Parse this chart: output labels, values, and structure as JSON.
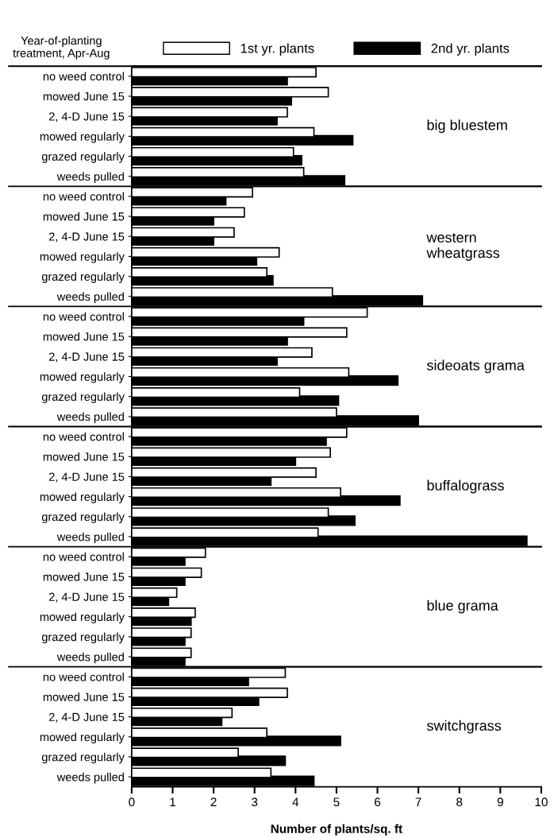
{
  "chart_data": [
    {
      "type": "bar",
      "orientation": "horizontal",
      "categories": [
        "no weed control",
        "mowed June 15",
        "2, 4-D June 15",
        "mowed regularly",
        "grazed regularly",
        "weeds pulled"
      ],
      "series": [
        {
          "name": "1st yr. plants",
          "color": "#ffffff",
          "values": [
            4.5,
            4.8,
            3.8,
            4.45,
            3.95,
            4.2
          ]
        },
        {
          "name": "2nd yr. plants",
          "color": "#000000",
          "values": [
            3.8,
            3.9,
            3.55,
            5.4,
            4.15,
            5.2
          ]
        }
      ],
      "xlim": [
        0,
        10
      ],
      "tick_labels": "y",
      "legend": "top",
      "annotations": [
        "Year-of-planting\ntreatment, Apr-Aug",
        "big bluestem"
      ]
    },
    {
      "type": "bar",
      "orientation": "horizontal",
      "categories": [
        "no weed control",
        "mowed June 15",
        "2, 4-D June 15",
        "mowed regularly",
        "grazed regularly",
        "weeds pulled"
      ],
      "series": [
        {
          "color": "#ffffff",
          "values": [
            2.95,
            2.75,
            2.5,
            3.6,
            3.3,
            4.9
          ]
        },
        {
          "color": "#000000",
          "values": [
            2.3,
            2.0,
            2.0,
            3.05,
            3.45,
            7.1
          ]
        }
      ],
      "xlim": [
        0,
        10
      ],
      "tick_labels": "y",
      "annotations": [
        "western\nwheatgrass"
      ]
    },
    {
      "type": "bar",
      "orientation": "horizontal",
      "categories": [
        "no weed control",
        "mowed June 15",
        "2, 4-D June 15",
        "mowed regularly",
        "grazed regularly",
        "weeds pulled"
      ],
      "series": [
        {
          "color": "#ffffff",
          "values": [
            5.75,
            5.25,
            4.4,
            5.3,
            4.1,
            5.0
          ]
        },
        {
          "color": "#000000",
          "values": [
            4.2,
            3.8,
            3.55,
            6.5,
            5.05,
            7.0
          ]
        }
      ],
      "xlim": [
        0,
        10
      ],
      "tick_labels": "y",
      "annotations": [
        "sideoats grama"
      ]
    },
    {
      "type": "bar",
      "orientation": "horizontal",
      "categories": [
        "no weed control",
        "mowed June 15",
        "2, 4-D June 15",
        "mowed regularly",
        "grazed regularly",
        "weeds pulled"
      ],
      "series": [
        {
          "color": "#ffffff",
          "values": [
            5.25,
            4.85,
            4.5,
            5.1,
            4.8,
            4.55
          ]
        },
        {
          "color": "#000000",
          "values": [
            4.75,
            4.0,
            3.4,
            6.55,
            5.45,
            9.65
          ]
        }
      ],
      "xlim": [
        0,
        10
      ],
      "tick_labels": "y",
      "annotations": [
        "buffalograss"
      ]
    },
    {
      "type": "bar",
      "orientation": "horizontal",
      "categories": [
        "no weed control",
        "mowed June 15",
        "2, 4-D June 15",
        "mowed regularly",
        "grazed regularly",
        "weeds pulled"
      ],
      "series": [
        {
          "color": "#ffffff",
          "values": [
            1.8,
            1.7,
            1.1,
            1.55,
            1.45,
            1.45
          ]
        },
        {
          "color": "#000000",
          "values": [
            1.3,
            1.3,
            0.9,
            1.45,
            1.3,
            1.3
          ]
        }
      ],
      "xlim": [
        0,
        10
      ],
      "tick_labels": "y",
      "annotations": [
        "blue grama"
      ]
    },
    {
      "type": "bar",
      "orientation": "horizontal",
      "categories": [
        "no weed control",
        "mowed June 15",
        "2, 4-D June 15",
        "mowed regularly",
        "grazed regularly",
        "weeds pulled"
      ],
      "series": [
        {
          "color": "#ffffff",
          "values": [
            3.75,
            3.8,
            2.45,
            3.3,
            2.6,
            3.4
          ]
        },
        {
          "color": "#000000",
          "values": [
            2.85,
            3.1,
            2.2,
            5.1,
            3.75,
            4.45
          ]
        }
      ],
      "xlim": [
        0,
        10
      ],
      "xticks": [
        0,
        1,
        2,
        3,
        4,
        5,
        6,
        7,
        8,
        9,
        10
      ],
      "xlabel": "Number of plants/sq. ft",
      "annotations": [
        "switchgrass"
      ]
    }
  ]
}
